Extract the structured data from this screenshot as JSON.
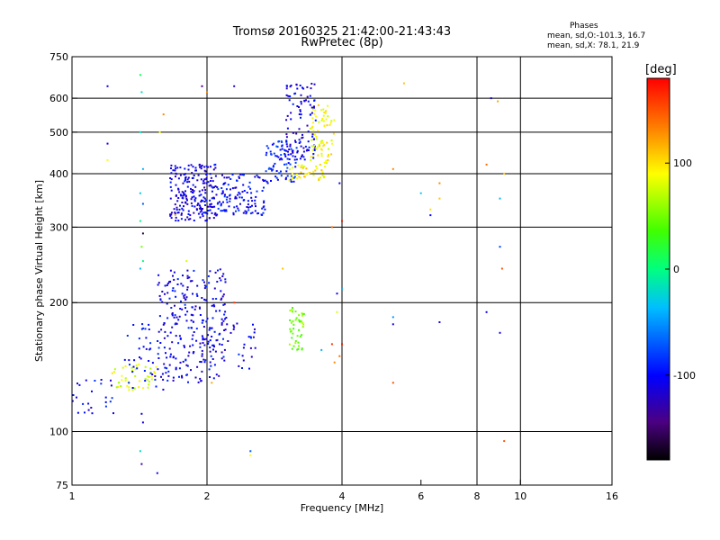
{
  "header": {
    "title_line1": "Tromsø 20160325 21:42:00-21:43:43",
    "title_line2": "RwPretec (8p)",
    "phases_heading": "Phases",
    "phases_O": "mean, sd,O:-101.3, 16.7",
    "phases_X": "mean, sd,X:  78.1, 21.9"
  },
  "colorbar": {
    "unit": "[deg]",
    "ticks": [
      "100",
      "0",
      "-100"
    ],
    "tick_values": [
      100,
      0,
      -100
    ],
    "range": [
      -180,
      180
    ]
  },
  "chart_data": {
    "type": "scatter",
    "xlabel": "Frequency [MHz]",
    "ylabel": "Stationary phase Virtual Height [km]",
    "x_scale": "log",
    "y_scale": "log",
    "xlim": [
      1,
      16
    ],
    "ylim": [
      75,
      750
    ],
    "xticks": [
      1,
      2,
      4,
      6,
      8,
      10,
      16
    ],
    "xtick_labels": [
      "1",
      "2",
      "4",
      "6",
      "8",
      "10",
      "16"
    ],
    "yticks": [
      75,
      100,
      200,
      300,
      400,
      500,
      600,
      750
    ],
    "ytick_labels": [
      "75",
      "100",
      "200",
      "300",
      "400",
      "500",
      "600",
      "750"
    ],
    "x_gridlines": [
      2,
      4,
      8,
      10
    ],
    "y_gridlines": [
      100,
      200,
      300,
      400,
      500,
      600
    ],
    "grid": true,
    "color_variable": "phase [deg]",
    "point_groups": [
      {
        "x_range": [
          1.0,
          1.25
        ],
        "h_range": [
          110,
          135
        ],
        "phase": -100,
        "count": 25
      },
      {
        "x_range": [
          1.2,
          1.55
        ],
        "h_range": [
          125,
          145
        ],
        "phase": 80,
        "count": 45
      },
      {
        "x_range": [
          1.3,
          1.6
        ],
        "h_range": [
          125,
          180
        ],
        "phase": -100,
        "count": 40
      },
      {
        "x_range": [
          1.55,
          2.2
        ],
        "h_range": [
          130,
          240
        ],
        "phase": -105,
        "count": 260
      },
      {
        "x_range": [
          2.0,
          2.6
        ],
        "h_range": [
          140,
          190
        ],
        "phase": -105,
        "count": 40
      },
      {
        "x_range": [
          1.65,
          2.1
        ],
        "h_range": [
          310,
          420
        ],
        "phase": -110,
        "count": 220
      },
      {
        "x_range": [
          2.1,
          2.7
        ],
        "h_range": [
          320,
          400
        ],
        "phase": -100,
        "count": 120
      },
      {
        "x_range": [
          2.7,
          3.2
        ],
        "h_range": [
          380,
          480
        ],
        "phase": -90,
        "count": 80
      },
      {
        "x_range": [
          3.0,
          3.5
        ],
        "h_range": [
          430,
          650
        ],
        "phase": -110,
        "count": 110
      },
      {
        "x_range": [
          3.05,
          3.7
        ],
        "h_range": [
          385,
          420
        ],
        "phase": 95,
        "count": 40
      },
      {
        "x_range": [
          3.4,
          3.85
        ],
        "h_range": [
          420,
          580
        ],
        "phase": 90,
        "count": 70
      },
      {
        "x_range": [
          3.05,
          3.3
        ],
        "h_range": [
          155,
          195
        ],
        "phase": 50,
        "count": 45
      }
    ],
    "scatter_points": [
      {
        "x": 1.2,
        "h": 640,
        "phase": -110
      },
      {
        "x": 1.2,
        "h": 470,
        "phase": -110
      },
      {
        "x": 1.2,
        "h": 430,
        "phase": 90
      },
      {
        "x": 1.42,
        "h": 680,
        "phase": 10
      },
      {
        "x": 1.43,
        "h": 620,
        "phase": -20
      },
      {
        "x": 1.42,
        "h": 500,
        "phase": -20
      },
      {
        "x": 1.44,
        "h": 410,
        "phase": -40
      },
      {
        "x": 1.42,
        "h": 360,
        "phase": -30
      },
      {
        "x": 1.44,
        "h": 340,
        "phase": -70
      },
      {
        "x": 1.42,
        "h": 310,
        "phase": 0
      },
      {
        "x": 1.44,
        "h": 290,
        "phase": -160
      },
      {
        "x": 1.43,
        "h": 270,
        "phase": 50
      },
      {
        "x": 1.44,
        "h": 250,
        "phase": 0
      },
      {
        "x": 1.42,
        "h": 240,
        "phase": -40
      },
      {
        "x": 1.43,
        "h": 110,
        "phase": -110
      },
      {
        "x": 1.44,
        "h": 105,
        "phase": -110
      },
      {
        "x": 1.42,
        "h": 90,
        "phase": -20
      },
      {
        "x": 1.43,
        "h": 84,
        "phase": -130
      },
      {
        "x": 1.55,
        "h": 80,
        "phase": -110
      },
      {
        "x": 1.6,
        "h": 550,
        "phase": 130
      },
      {
        "x": 1.57,
        "h": 500,
        "phase": 95
      },
      {
        "x": 1.7,
        "h": 320,
        "phase": 110
      },
      {
        "x": 1.8,
        "h": 250,
        "phase": 80
      },
      {
        "x": 1.95,
        "h": 640,
        "phase": -140
      },
      {
        "x": 2.0,
        "h": 620,
        "phase": 130
      },
      {
        "x": 2.05,
        "h": 130,
        "phase": 120
      },
      {
        "x": 2.3,
        "h": 640,
        "phase": -120
      },
      {
        "x": 2.3,
        "h": 200,
        "phase": 160
      },
      {
        "x": 2.5,
        "h": 88,
        "phase": 90
      },
      {
        "x": 2.5,
        "h": 90,
        "phase": -70
      },
      {
        "x": 2.95,
        "h": 240,
        "phase": 110
      },
      {
        "x": 3.6,
        "h": 155,
        "phase": -40
      },
      {
        "x": 3.8,
        "h": 300,
        "phase": 140
      },
      {
        "x": 3.9,
        "h": 190,
        "phase": 80
      },
      {
        "x": 3.8,
        "h": 160,
        "phase": 160
      },
      {
        "x": 3.9,
        "h": 210,
        "phase": -110
      },
      {
        "x": 3.85,
        "h": 145,
        "phase": 130
      },
      {
        "x": 3.95,
        "h": 150,
        "phase": 140
      },
      {
        "x": 4.0,
        "h": 310,
        "phase": 170
      },
      {
        "x": 4.0,
        "h": 215,
        "phase": -40
      },
      {
        "x": 4.0,
        "h": 160,
        "phase": 170
      },
      {
        "x": 3.95,
        "h": 380,
        "phase": -110
      },
      {
        "x": 5.2,
        "h": 185,
        "phase": -50
      },
      {
        "x": 5.2,
        "h": 178,
        "phase": -110
      },
      {
        "x": 5.2,
        "h": 130,
        "phase": 150
      },
      {
        "x": 5.2,
        "h": 410,
        "phase": 130
      },
      {
        "x": 5.5,
        "h": 650,
        "phase": 110
      },
      {
        "x": 6.0,
        "h": 360,
        "phase": -30
      },
      {
        "x": 6.3,
        "h": 330,
        "phase": 100
      },
      {
        "x": 6.3,
        "h": 320,
        "phase": -100
      },
      {
        "x": 6.6,
        "h": 380,
        "phase": 130
      },
      {
        "x": 6.6,
        "h": 350,
        "phase": 110
      },
      {
        "x": 6.6,
        "h": 180,
        "phase": -110
      },
      {
        "x": 8.4,
        "h": 420,
        "phase": 140
      },
      {
        "x": 8.4,
        "h": 190,
        "phase": -110
      },
      {
        "x": 8.6,
        "h": 600,
        "phase": -110
      },
      {
        "x": 8.9,
        "h": 590,
        "phase": 120
      },
      {
        "x": 9.0,
        "h": 350,
        "phase": -40
      },
      {
        "x": 9.0,
        "h": 270,
        "phase": -80
      },
      {
        "x": 9.0,
        "h": 170,
        "phase": -110
      },
      {
        "x": 9.1,
        "h": 240,
        "phase": 150
      },
      {
        "x": 9.2,
        "h": 400,
        "phase": 110
      },
      {
        "x": 9.2,
        "h": 95,
        "phase": 150
      }
    ]
  }
}
